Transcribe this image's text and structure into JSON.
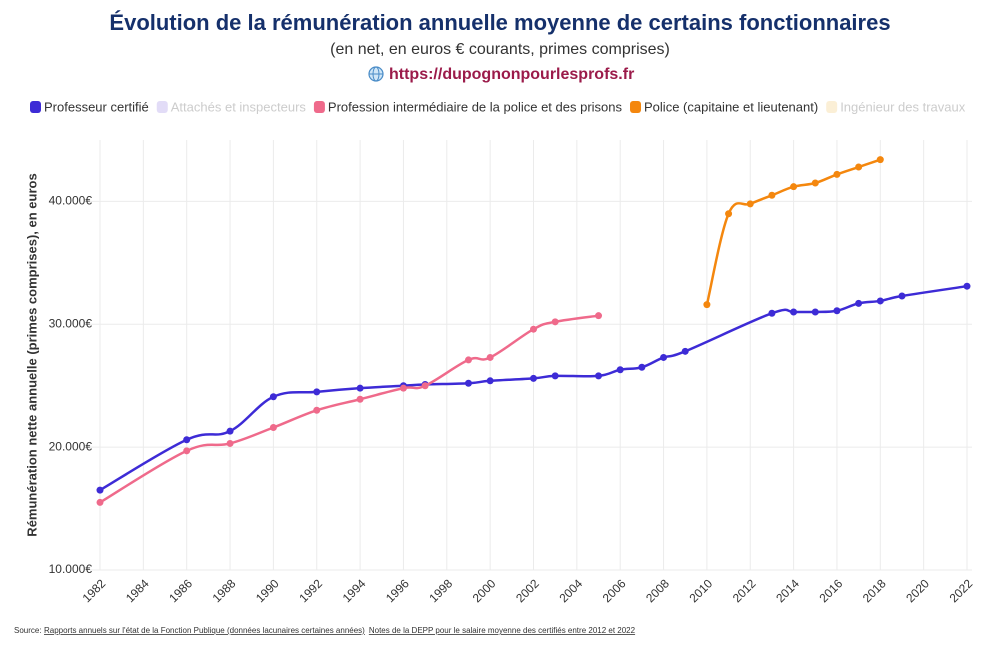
{
  "chart_data": {
    "type": "line",
    "title": "Évolution de la rémunération annuelle moyenne de certains fonctionnaires",
    "subtitle": "(en net, en euros € courants, primes comprises)",
    "link": "https://dupognonpourlesprofs.fr",
    "y_label": "Rémunération nette annuelle (primes comprises), en euros",
    "source": {
      "label": "Source:",
      "links": [
        "Rapports annuels sur l'état de la Fonction Publique (données lacunaires certaines années)",
        "Notes de la DEPP pour le salaire moyenne des certifiés entre 2012 et 2022"
      ]
    },
    "xlim": [
      1982,
      2022
    ],
    "xticks": [
      1982,
      1984,
      1986,
      1988,
      1990,
      1992,
      1994,
      1996,
      1998,
      2000,
      2002,
      2004,
      2006,
      2008,
      2010,
      2012,
      2014,
      2016,
      2018,
      2020,
      2022
    ],
    "ylim": [
      10000,
      45000
    ],
    "yticks": [
      {
        "value": 10000,
        "label": "10.000€"
      },
      {
        "value": 20000,
        "label": "20.000€"
      },
      {
        "value": 30000,
        "label": "30.000€"
      },
      {
        "value": 40000,
        "label": "40.000€"
      }
    ],
    "grid": true,
    "series": [
      {
        "name": "Professeur certifié",
        "color": "#3d2bd6",
        "visible": true,
        "x": [
          1982,
          1986,
          1988,
          1990,
          1992,
          1994,
          1996,
          1997,
          1999,
          2000,
          2002,
          2003,
          2005,
          2006,
          2007,
          2008,
          2009,
          2013,
          2014,
          2015,
          2016,
          2017,
          2018,
          2019,
          2022
        ],
        "values": [
          16500,
          20600,
          21300,
          24100,
          24500,
          24800,
          25000,
          25100,
          25200,
          25400,
          25600,
          25800,
          25800,
          26300,
          26500,
          27300,
          27800,
          30900,
          31000,
          31000,
          31100,
          31700,
          31900,
          32300,
          33100
        ]
      },
      {
        "name": "Attachés et inspecteurs",
        "color": "#e2dcf7",
        "visible": false,
        "x": [],
        "values": []
      },
      {
        "name": "Profession intermédiaire de la police et des prisons",
        "color": "#ef6a8b",
        "visible": true,
        "x": [
          1982,
          1986,
          1988,
          1990,
          1992,
          1994,
          1996,
          1997,
          1999,
          2000,
          2002,
          2003,
          2005
        ],
        "values": [
          15500,
          19700,
          20300,
          21600,
          23000,
          23900,
          24800,
          25000,
          27100,
          27300,
          29600,
          30200,
          30700
        ]
      },
      {
        "name": "Police (capitaine et lieutenant)",
        "color": "#f4870e",
        "visible": true,
        "x": [
          2010,
          2011,
          2012,
          2013,
          2014,
          2015,
          2016,
          2017,
          2018
        ],
        "values": [
          31600,
          39000,
          39800,
          40500,
          41200,
          41500,
          42200,
          42800,
          43400
        ]
      },
      {
        "name": "Ingénieur des travaux",
        "color": "#fbefd6",
        "visible": false,
        "x": [],
        "values": []
      }
    ]
  }
}
